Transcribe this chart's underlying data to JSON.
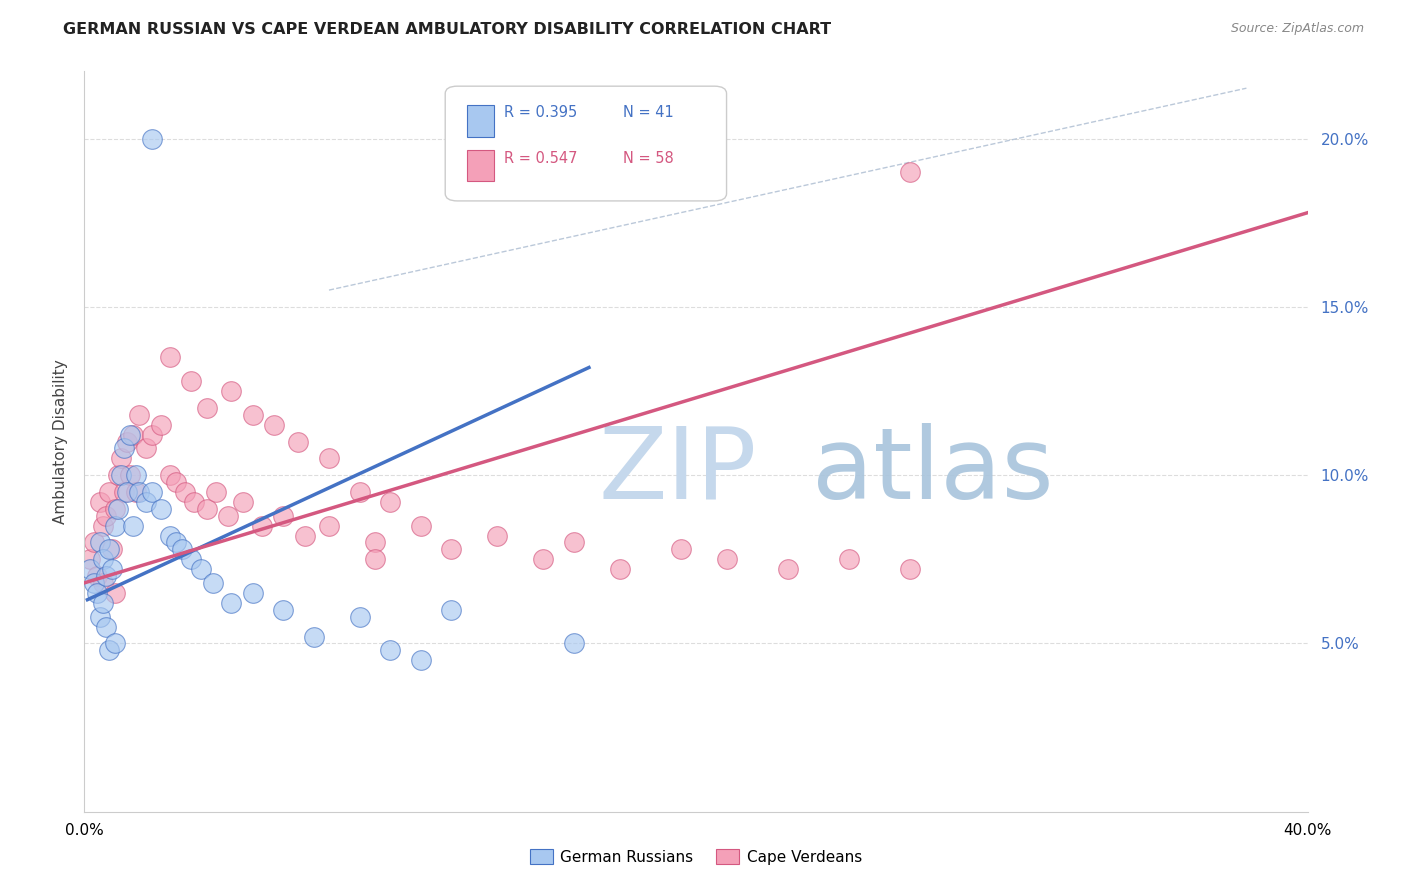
{
  "title": "GERMAN RUSSIAN VS CAPE VERDEAN AMBULATORY DISABILITY CORRELATION CHART",
  "source": "Source: ZipAtlas.com",
  "ylabel": "Ambulatory Disability",
  "xmin": 0.0,
  "xmax": 0.4,
  "ymin": 0.0,
  "ymax": 0.22,
  "yticks": [
    0.05,
    0.1,
    0.15,
    0.2
  ],
  "ytick_labels": [
    "5.0%",
    "10.0%",
    "15.0%",
    "20.0%"
  ],
  "xticks": [
    0.0,
    0.05,
    0.1,
    0.15,
    0.2,
    0.25,
    0.3,
    0.35,
    0.4
  ],
  "blue_color": "#A8C8F0",
  "pink_color": "#F4A0B8",
  "trendline_blue": "#4472C4",
  "trendline_pink": "#D45880",
  "blue_scatter_x": [
    0.002,
    0.003,
    0.004,
    0.005,
    0.005,
    0.006,
    0.006,
    0.007,
    0.007,
    0.008,
    0.008,
    0.009,
    0.01,
    0.01,
    0.011,
    0.012,
    0.013,
    0.014,
    0.015,
    0.016,
    0.017,
    0.018,
    0.02,
    0.022,
    0.025,
    0.028,
    0.03,
    0.032,
    0.035,
    0.038,
    0.042,
    0.048,
    0.055,
    0.065,
    0.075,
    0.09,
    0.1,
    0.11,
    0.12,
    0.16,
    0.022
  ],
  "blue_scatter_y": [
    0.072,
    0.068,
    0.065,
    0.08,
    0.058,
    0.075,
    0.062,
    0.07,
    0.055,
    0.078,
    0.048,
    0.072,
    0.085,
    0.05,
    0.09,
    0.1,
    0.108,
    0.095,
    0.112,
    0.085,
    0.1,
    0.095,
    0.092,
    0.095,
    0.09,
    0.082,
    0.08,
    0.078,
    0.075,
    0.072,
    0.068,
    0.062,
    0.065,
    0.06,
    0.052,
    0.058,
    0.048,
    0.045,
    0.06,
    0.05,
    0.2
  ],
  "pink_scatter_x": [
    0.002,
    0.003,
    0.004,
    0.005,
    0.006,
    0.006,
    0.007,
    0.008,
    0.009,
    0.01,
    0.01,
    0.011,
    0.012,
    0.013,
    0.014,
    0.015,
    0.016,
    0.017,
    0.018,
    0.02,
    0.022,
    0.025,
    0.028,
    0.03,
    0.033,
    0.036,
    0.04,
    0.043,
    0.047,
    0.052,
    0.058,
    0.065,
    0.072,
    0.08,
    0.09,
    0.095,
    0.1,
    0.11,
    0.12,
    0.135,
    0.15,
    0.16,
    0.175,
    0.195,
    0.21,
    0.23,
    0.25,
    0.27,
    0.028,
    0.035,
    0.04,
    0.048,
    0.055,
    0.062,
    0.07,
    0.08,
    0.095,
    0.27
  ],
  "pink_scatter_y": [
    0.075,
    0.08,
    0.07,
    0.092,
    0.085,
    0.068,
    0.088,
    0.095,
    0.078,
    0.09,
    0.065,
    0.1,
    0.105,
    0.095,
    0.11,
    0.1,
    0.112,
    0.095,
    0.118,
    0.108,
    0.112,
    0.115,
    0.1,
    0.098,
    0.095,
    0.092,
    0.09,
    0.095,
    0.088,
    0.092,
    0.085,
    0.088,
    0.082,
    0.085,
    0.095,
    0.08,
    0.092,
    0.085,
    0.078,
    0.082,
    0.075,
    0.08,
    0.072,
    0.078,
    0.075,
    0.072,
    0.075,
    0.19,
    0.135,
    0.128,
    0.12,
    0.125,
    0.118,
    0.115,
    0.11,
    0.105,
    0.075,
    0.072
  ],
  "blue_trend_x": [
    0.001,
    0.165
  ],
  "blue_trend_y": [
    0.063,
    0.132
  ],
  "pink_trend_x": [
    0.0,
    0.4
  ],
  "pink_trend_y": [
    0.068,
    0.178
  ],
  "dashed_line_x": [
    0.08,
    0.38
  ],
  "dashed_line_y": [
    0.155,
    0.215
  ],
  "background_color": "#FFFFFF",
  "grid_color": "#DDDDDD"
}
